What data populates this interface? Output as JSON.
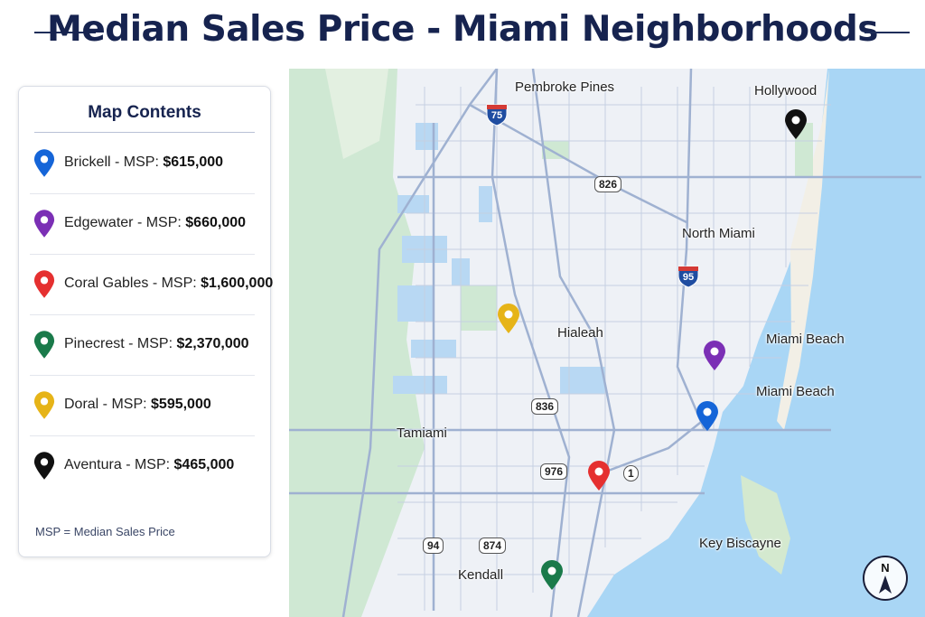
{
  "title": "Median Sales Price - Miami Neighborhoods",
  "legend": {
    "heading": "Map Contents",
    "items": [
      {
        "name": "Brickell",
        "sep": " - MSP: ",
        "price": "$615,000",
        "color": "#1565d8"
      },
      {
        "name": "Edgewater",
        "sep": " - MSP: ",
        "price": "$660,000",
        "color": "#7b2fb5"
      },
      {
        "name": "Coral Gables",
        "sep": " - MSP: ",
        "price": "$1,600,000",
        "color": "#e53030"
      },
      {
        "name": "Pinecrest",
        "sep": " - MSP: ",
        "price": "$2,370,000",
        "color": "#1a7a4a"
      },
      {
        "name": "Doral",
        "sep": " - MSP: ",
        "price": "$595,000",
        "color": "#e6b418"
      },
      {
        "name": "Aventura",
        "sep": " - MSP: ",
        "price": "$465,000",
        "color": "#111111"
      }
    ],
    "footnote": "MSP = Median Sales Price"
  },
  "map": {
    "places": {
      "pembroke_pines": "Pembroke Pines",
      "hollywood": "Hollywood",
      "north_miami": "North Miami",
      "hialeah": "Hialeah",
      "miami_beach_1": "Miami Beach",
      "miami_beach_2": "Miami Beach",
      "tamiami": "Tamiami",
      "key_biscayne": "Key Biscayne",
      "kendall": "Kendall"
    },
    "highways": {
      "i75": "75",
      "i95": "95",
      "r826": "826",
      "r836": "836",
      "r976": "976",
      "us1": "1",
      "r94": "94",
      "r874": "874"
    },
    "compass": "N",
    "colors": {
      "water": "#a9d6f5",
      "land": "#eef1f6",
      "park": "#cfe8d3",
      "road": "#9fb1d1"
    }
  }
}
